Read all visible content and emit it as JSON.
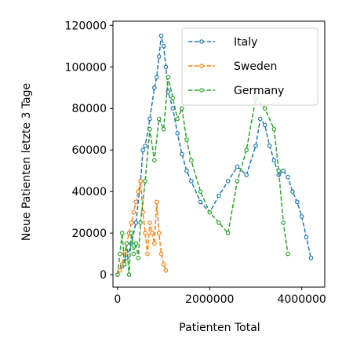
{
  "chart_data": {
    "type": "line",
    "xlabel": "Patienten Total",
    "ylabel": "Neue Patienten letzte 3 Tage",
    "xlim": [
      -100000,
      4500000
    ],
    "ylim": [
      -6000,
      122000
    ],
    "xticks": [
      0,
      2000000,
      4000000
    ],
    "xtick_labels": [
      "0",
      "2000000",
      "4000000"
    ],
    "yticks": [
      0,
      20000,
      40000,
      60000,
      80000,
      100000,
      120000
    ],
    "ytick_labels": [
      "0",
      "20000",
      "40000",
      "60000",
      "80000",
      "100000",
      "120000"
    ],
    "grid": false,
    "legend_position": "upper right",
    "series": [
      {
        "name": "Italy",
        "color": "#1f77b4",
        "x": [
          0,
          100000,
          200000,
          300000,
          400000,
          500000,
          550000,
          600000,
          700000,
          800000,
          850000,
          900000,
          950000,
          1000000,
          1050000,
          1100000,
          1200000,
          1300000,
          1400000,
          1500000,
          1600000,
          1800000,
          2000000,
          2200000,
          2400000,
          2600000,
          2800000,
          3000000,
          3100000,
          3200000,
          3300000,
          3400000,
          3500000,
          3600000,
          3700000,
          3800000,
          3900000,
          4000000,
          4100000,
          4200000
        ],
        "y": [
          0,
          4000,
          8000,
          15000,
          25000,
          45000,
          60000,
          62000,
          75000,
          90000,
          95000,
          105000,
          115000,
          110000,
          100000,
          88000,
          80000,
          68000,
          58000,
          50000,
          45000,
          35000,
          30000,
          38000,
          45000,
          52000,
          48000,
          62000,
          75000,
          72000,
          62000,
          55000,
          48000,
          50000,
          47000,
          40000,
          35000,
          28000,
          18000,
          8000
        ]
      },
      {
        "name": "Sweden",
        "color": "#ff7f0e",
        "x": [
          0,
          50000,
          100000,
          150000,
          200000,
          250000,
          300000,
          350000,
          400000,
          450000,
          500000,
          550000,
          600000,
          650000,
          700000,
          750000,
          800000,
          850000,
          900000,
          950000,
          1000000,
          1050000
        ],
        "y": [
          0,
          2000,
          5000,
          10000,
          15000,
          20000,
          25000,
          30000,
          35000,
          40000,
          45000,
          30000,
          20000,
          10000,
          25000,
          20000,
          15000,
          35000,
          20000,
          10000,
          5000,
          2000
        ]
      },
      {
        "name": "Germany",
        "color": "#2ca02c",
        "x": [
          0,
          50000,
          100000,
          150000,
          200000,
          250000,
          300000,
          350000,
          400000,
          450000,
          500000,
          600000,
          700000,
          800000,
          900000,
          1000000,
          1100000,
          1200000,
          1300000,
          1400000,
          1500000,
          1600000,
          1800000,
          2000000,
          2200000,
          2400000,
          2600000,
          2800000,
          3000000,
          3200000,
          3400000,
          3500000,
          3600000,
          3700000
        ],
        "y": [
          0,
          10000,
          20000,
          5000,
          15000,
          0,
          20000,
          10000,
          15000,
          8000,
          25000,
          45000,
          70000,
          55000,
          75000,
          70000,
          95000,
          85000,
          75000,
          80000,
          65000,
          55000,
          40000,
          30000,
          25000,
          20000,
          45000,
          60000,
          85000,
          80000,
          70000,
          50000,
          25000,
          10000
        ]
      }
    ]
  }
}
